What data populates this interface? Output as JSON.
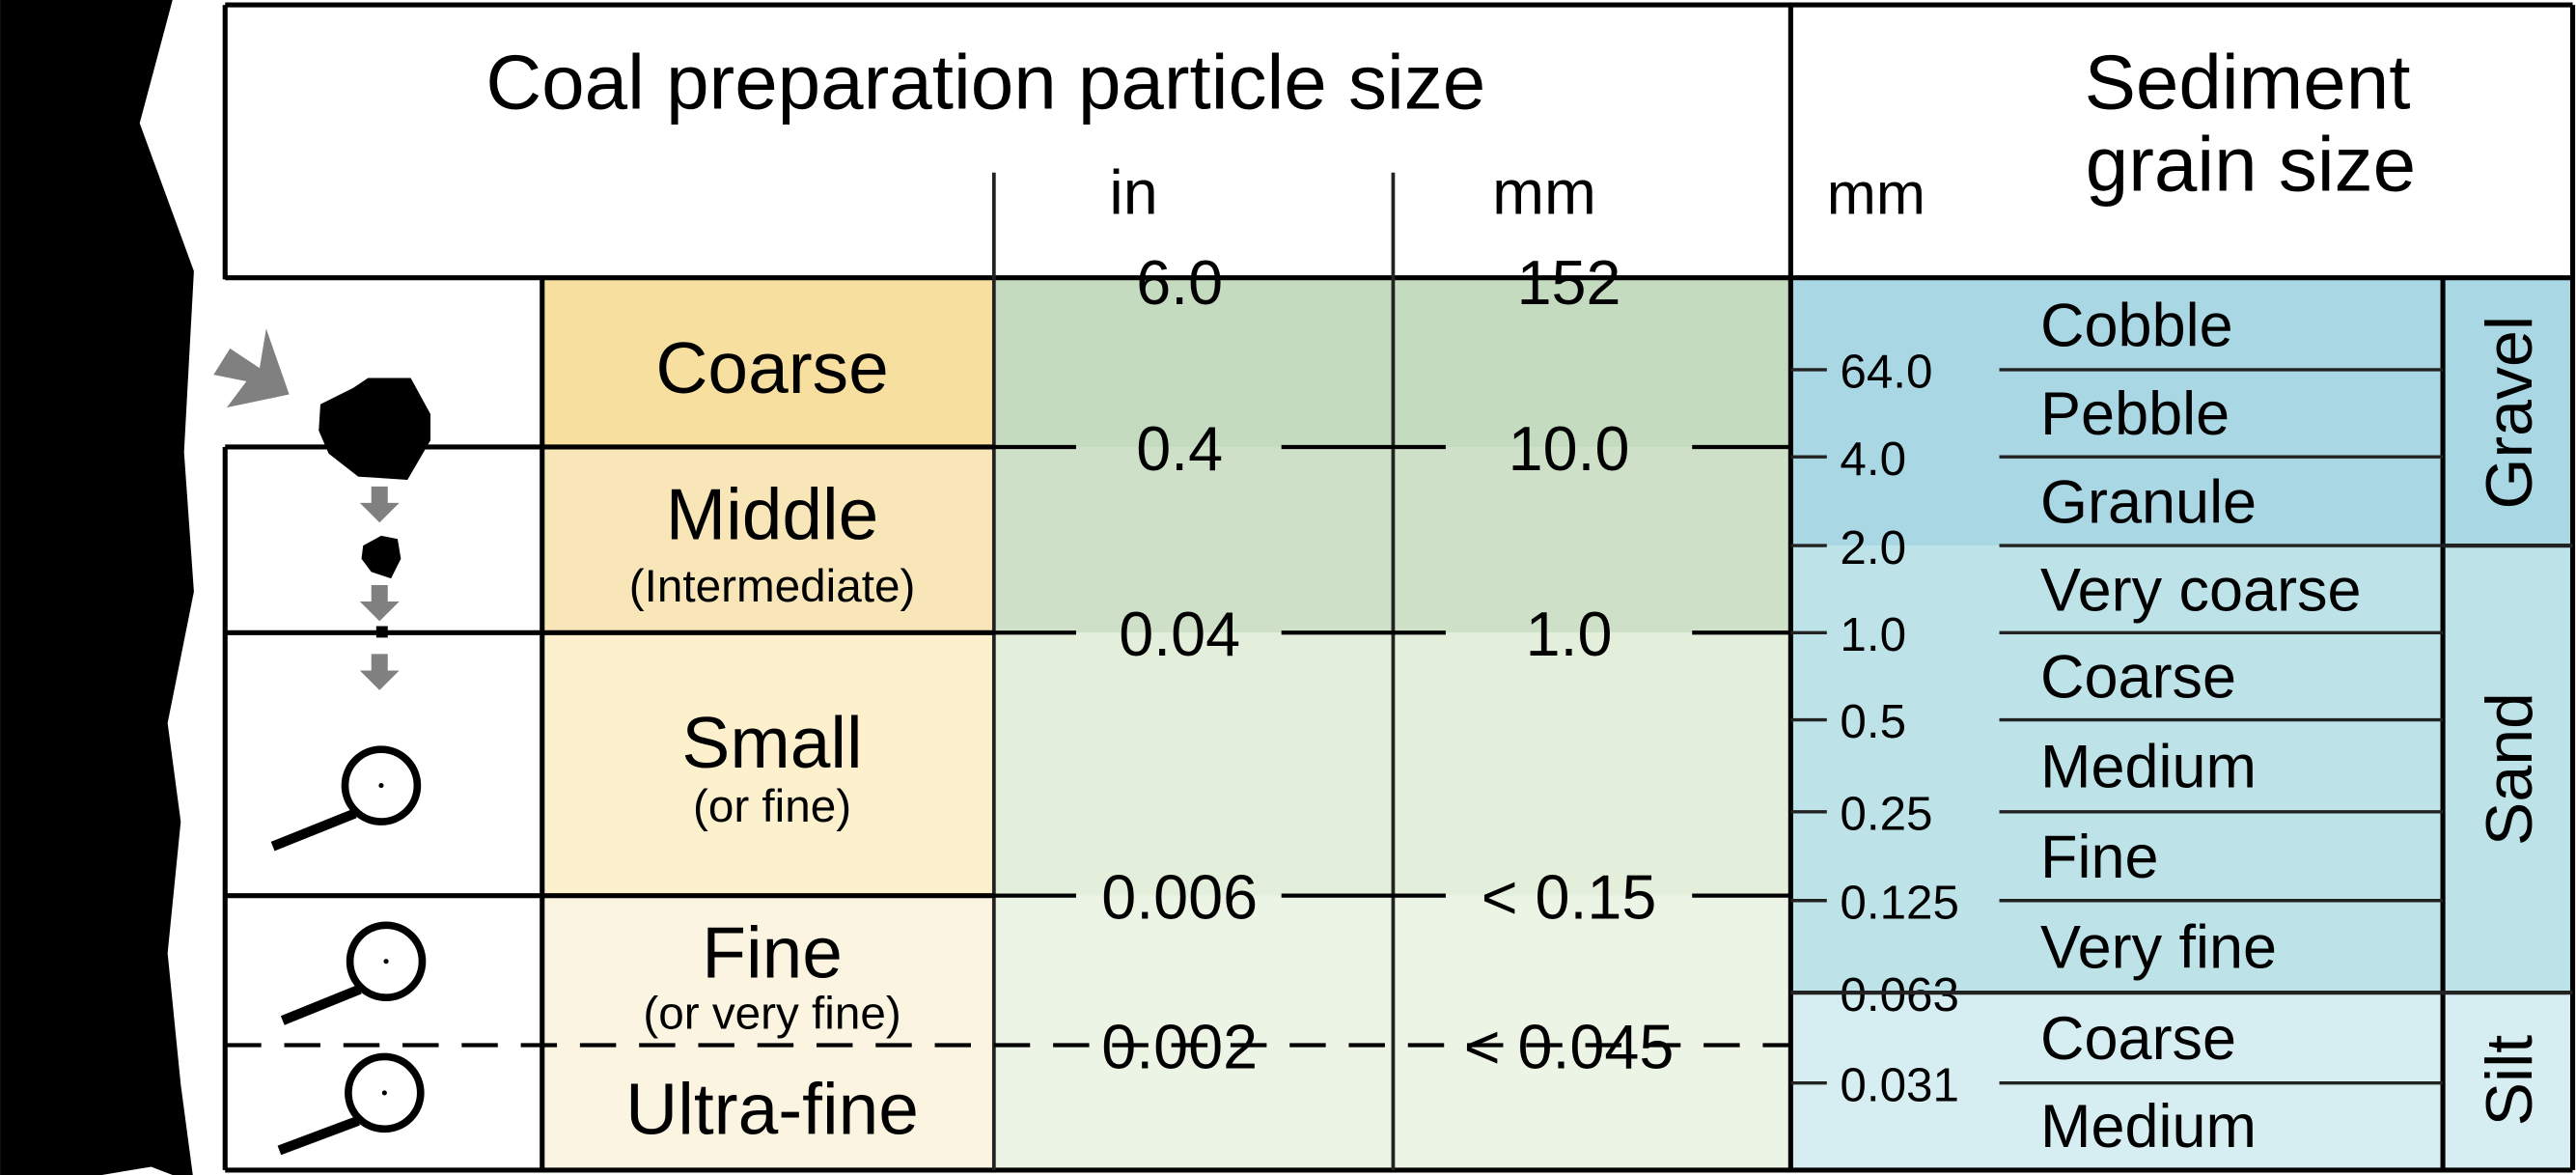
{
  "coal": {
    "title": "Coal preparation particle size",
    "unit_in": "in",
    "unit_mm": "mm",
    "classes": [
      {
        "name": "Coarse",
        "sub": "",
        "color": "#f7dfa0"
      },
      {
        "name": "Middle",
        "sub": "(Intermediate)",
        "color": "#f8e6b8"
      },
      {
        "name": "Small",
        "sub": "(or fine)",
        "color": "#fdf0cc"
      },
      {
        "name": "Fine",
        "sub": "(or very fine)",
        "color": "#faf4e0"
      },
      {
        "name": "Ultra-fine",
        "sub": "",
        "color": "#faf4e0"
      }
    ],
    "boundaries": [
      {
        "in": "6.0",
        "mm": "152"
      },
      {
        "in": "0.4",
        "mm": "10.0"
      },
      {
        "in": "0.04",
        "mm": "1.0"
      },
      {
        "in": "0.006",
        "mm": "< 0.15"
      },
      {
        "in": "0.002",
        "mm": "< 0.045"
      }
    ],
    "green_colors": [
      "#c5dbbf",
      "#cfe0c8",
      "#e3eedb",
      "#ecf4e6"
    ],
    "icons": [
      "arrow-icon",
      "coal-lump-icon",
      "down-arrow-icon",
      "magnifier-icon"
    ]
  },
  "sediment": {
    "title_line1": "Sediment",
    "title_line2": "grain size",
    "unit_mm": "mm",
    "ticks": [
      "64.0",
      "4.0",
      "2.0",
      "1.0",
      "0.5",
      "0.25",
      "0.125",
      "0.063",
      "0.031"
    ],
    "grains": [
      "Cobble",
      "Pebble",
      "Granule",
      "Very coarse",
      "Coarse",
      "Medium",
      "Fine",
      "Very fine",
      "Coarse",
      "Medium"
    ],
    "groups": [
      {
        "name": "Gravel",
        "color": "#a9d8e4"
      },
      {
        "name": "Sand",
        "color": "#bde3e8"
      },
      {
        "name": "Silt",
        "color": "#d6eef2"
      }
    ]
  }
}
